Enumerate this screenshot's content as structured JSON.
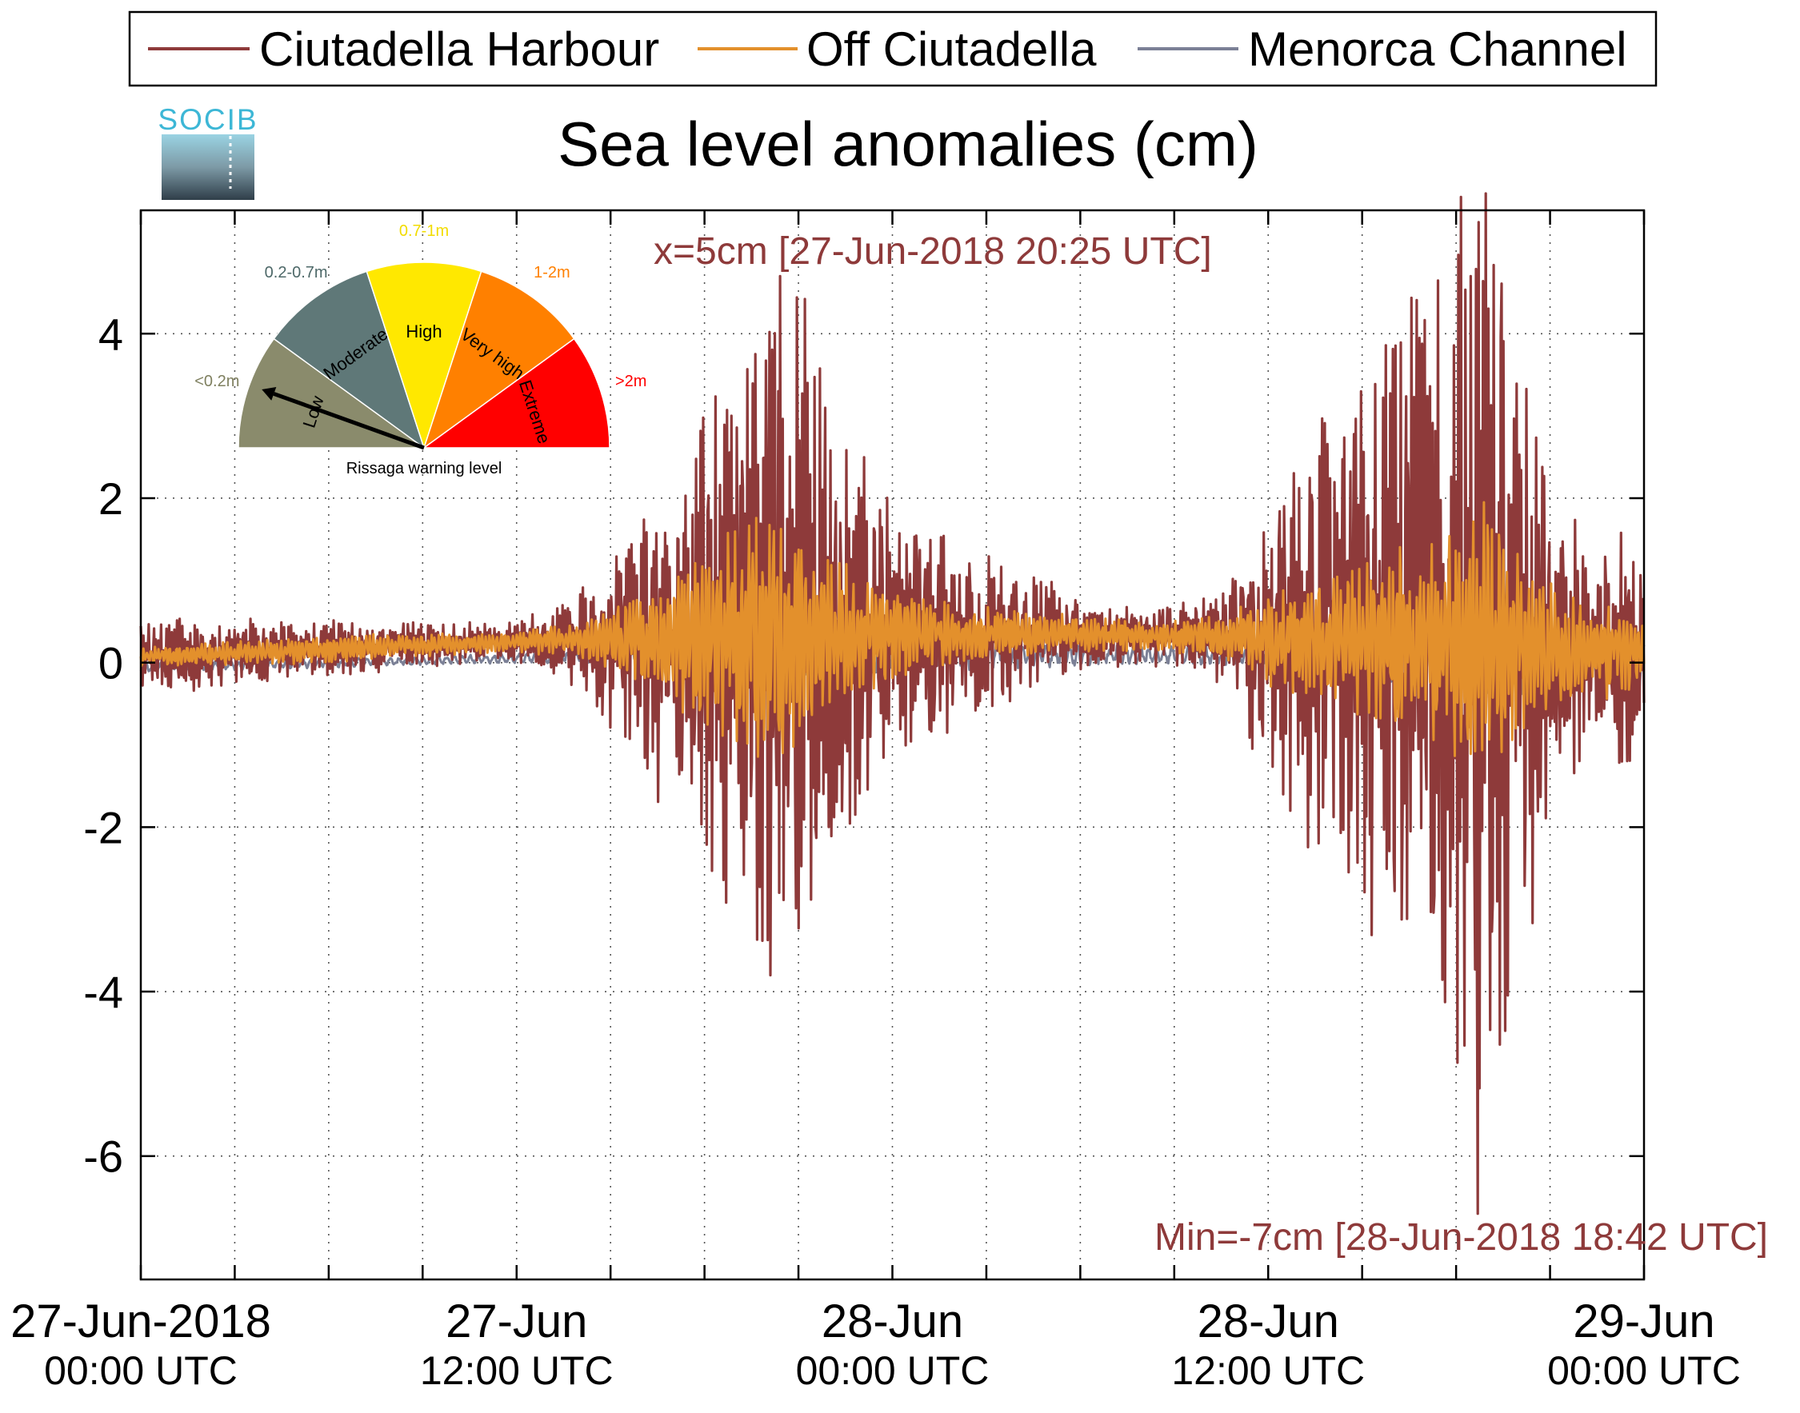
{
  "colors": {
    "harbour": "#8e3a3a",
    "off": "#e3902c",
    "channel": "#7b8096",
    "axis": "#000000",
    "grid": "#555555"
  },
  "legend": {
    "items": [
      "Ciutadella Harbour",
      "Off Ciutadella",
      "Menorca Channel"
    ]
  },
  "logo": {
    "text": "SOCIB"
  },
  "gauge": {
    "caption": "Rissaga warning level",
    "sectors": [
      {
        "name": "Low",
        "range": "<0.2m",
        "color": "#8a8b6c",
        "range_color": "#7f8060"
      },
      {
        "name": "Moderate",
        "range": "0.2-0.7m",
        "color": "#5f7878",
        "range_color": "#4d6868"
      },
      {
        "name": "High",
        "range": "0.7-1m",
        "color": "#ffe800",
        "range_color": "#f2dc00"
      },
      {
        "name": "Very high",
        "range": "1-2m",
        "color": "#ff8000",
        "range_color": "#ff8000"
      },
      {
        "name": "Extreme",
        "range": ">2m",
        "color": "#ff0000",
        "range_color": "#ff0000"
      }
    ],
    "current_level": "Low"
  },
  "chart_data": {
    "type": "line",
    "title": "Sea level anomalies (cm)",
    "xlabel": "",
    "ylabel": "",
    "ylim": [
      -7.5,
      5.5
    ],
    "y_ticks": [
      -6,
      -4,
      -2,
      0,
      2,
      4
    ],
    "y_tick_labels": [
      "-6",
      "-4",
      "-2",
      "0",
      "2",
      "4"
    ],
    "x_range_hours": [
      0,
      48
    ],
    "x_tick_labels": [
      {
        "hour": 0,
        "date": "27-Jun-2018",
        "time": "00:00 UTC"
      },
      {
        "hour": 12,
        "date": "27-Jun",
        "time": "12:00 UTC"
      },
      {
        "hour": 24,
        "date": "28-Jun",
        "time": "00:00 UTC"
      },
      {
        "hour": 36,
        "date": "28-Jun",
        "time": "12:00 UTC"
      },
      {
        "hour": 48,
        "date": "29-Jun",
        "time": "00:00 UTC"
      }
    ],
    "minor_x_hours": [
      3,
      6,
      9,
      15,
      18,
      21,
      27,
      30,
      33,
      39,
      42,
      45
    ],
    "grid": true,
    "legend_position": "top",
    "annotations": {
      "max": "x=5cm [27-Jun-2018 20:25 UTC]",
      "min": "Min=-7cm [28-Jun-2018 18:42 UTC]"
    },
    "series": [
      {
        "name": "Ciutadella Harbour",
        "envelope_hours": [
          0,
          6,
          12,
          14,
          16,
          18,
          20,
          21,
          22,
          23,
          24,
          26,
          28,
          30,
          32,
          34,
          35,
          36,
          38,
          40,
          42,
          43,
          44,
          45,
          46,
          47,
          48
        ],
        "envelope_cm": [
          0.4,
          0.3,
          0.2,
          0.5,
          1.4,
          2.5,
          3.5,
          3.8,
          3.1,
          2.2,
          1.5,
          1.0,
          0.7,
          0.4,
          0.3,
          0.4,
          0.8,
          1.5,
          2.5,
          3.5,
          4.6,
          5.5,
          3.5,
          2.0,
          1.2,
          1.3,
          1.0
        ],
        "extremes": [
          {
            "hour": 20.42,
            "value": 4.7
          },
          {
            "hour": 20.1,
            "value": -3.8
          },
          {
            "hour": 42.7,
            "value": -6.7
          },
          {
            "hour": 42.9,
            "value": 4.4
          }
        ]
      },
      {
        "name": "Off Ciutadella",
        "envelope_hours": [
          0,
          6,
          12,
          14,
          16,
          18,
          20,
          21,
          22,
          23,
          24,
          26,
          28,
          30,
          32,
          34,
          35,
          36,
          38,
          40,
          42,
          43,
          44,
          45,
          46,
          47,
          48
        ],
        "envelope_cm": [
          0.1,
          0.15,
          0.1,
          0.2,
          0.5,
          1.0,
          1.4,
          1.2,
          0.9,
          0.6,
          0.5,
          0.3,
          0.25,
          0.2,
          0.15,
          0.2,
          0.3,
          0.5,
          0.7,
          1.0,
          1.3,
          1.5,
          1.0,
          0.7,
          0.5,
          0.5,
          0.4
        ]
      },
      {
        "name": "Menorca Channel",
        "envelope_hours": [
          0,
          12,
          16,
          18,
          20,
          22,
          24,
          28,
          32,
          36,
          38,
          40,
          42,
          44,
          46,
          48
        ],
        "envelope_cm": [
          0.05,
          0.05,
          0.1,
          0.15,
          0.25,
          0.25,
          0.2,
          0.15,
          0.1,
          0.1,
          0.2,
          0.3,
          0.4,
          0.4,
          0.3,
          0.25
        ]
      }
    ]
  }
}
